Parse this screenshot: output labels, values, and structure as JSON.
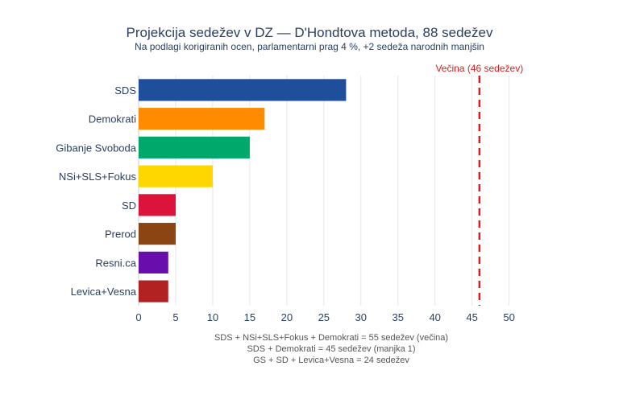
{
  "chart_data": {
    "type": "bar",
    "orientation": "horizontal",
    "title": "Projekcija sedežev v DZ — D'Hondtova metoda, 88 sedežev",
    "subtitle": "Na podlagi korigiranih ocen, parlamentarni prag 4 %, +2 sedeža narodnih manjšin",
    "categories": [
      "SDS",
      "Demokrati",
      "Gibanje Svoboda",
      "NSi+SLS+Fokus",
      "SD",
      "Prerod",
      "Resni.ca",
      "Levica+Vesna"
    ],
    "values": [
      28,
      17,
      15,
      10,
      5,
      5,
      4,
      4
    ],
    "colors": [
      "#1f4e9c",
      "#ff8c00",
      "#00a86b",
      "#ffd700",
      "#dc143c",
      "#8b4513",
      "#6a0dad",
      "#b22222"
    ],
    "xlim": [
      0,
      52
    ],
    "xticks": [
      0,
      5,
      10,
      15,
      20,
      25,
      30,
      35,
      40,
      45,
      50
    ],
    "grid": true,
    "reference_line": {
      "value": 46,
      "label": "Večina (46 sedežev)",
      "color": "#e31a1c",
      "style": "dashed"
    },
    "annotations": [
      "SDS + NSi+SLS+Fokus + Demokrati = 55 sedežev (večina)",
      "SDS + Demokrati = 45 sedežev (manjka 1)",
      "GS + SD + Levica+Vesna = 24 sedežev"
    ]
  }
}
